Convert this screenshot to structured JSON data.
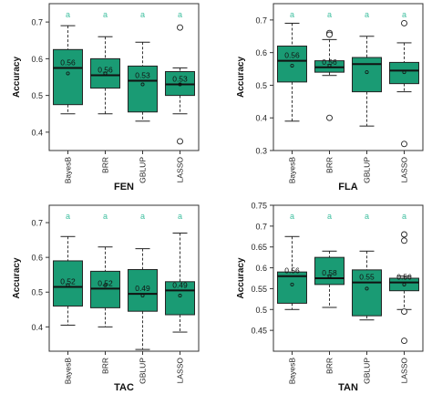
{
  "style": {
    "box_fill": "#1a9b74",
    "box_stroke": "#222222",
    "letter_color": "#3fbfa0",
    "frame_color": "#333333"
  },
  "chart_data": [
    {
      "type": "box",
      "title": "FEN",
      "xlabel": "",
      "ylabel": "Accuracy",
      "ylim": [
        0.35,
        0.75
      ],
      "yticks": [
        "0.4",
        "0.5",
        "0.6",
        "0.7"
      ],
      "categories": [
        "BayesB",
        "BRR",
        "GBLUP",
        "LASSO"
      ],
      "boxes": [
        {
          "min": 0.45,
          "q1": 0.475,
          "median": 0.575,
          "q3": 0.625,
          "max": 0.69,
          "mean": 0.56,
          "mean_label": "0.56",
          "letter": "a",
          "outliers": []
        },
        {
          "min": 0.45,
          "q1": 0.52,
          "median": 0.555,
          "q3": 0.6,
          "max": 0.66,
          "mean": 0.56,
          "mean_label": "0.56",
          "letter": "a",
          "outliers": []
        },
        {
          "min": 0.43,
          "q1": 0.455,
          "median": 0.54,
          "q3": 0.58,
          "max": 0.645,
          "mean": 0.53,
          "mean_label": "0.53",
          "letter": "a",
          "outliers": []
        },
        {
          "min": 0.45,
          "q1": 0.5,
          "median": 0.53,
          "q3": 0.565,
          "max": 0.575,
          "mean": 0.53,
          "mean_label": "0.53",
          "letter": "a",
          "outliers": [
            0.685,
            0.375
          ]
        }
      ]
    },
    {
      "type": "box",
      "title": "FLA",
      "xlabel": "",
      "ylabel": "Accuracy",
      "ylim": [
        0.3,
        0.75
      ],
      "yticks": [
        "0.3",
        "0.4",
        "0.5",
        "0.6",
        "0.7"
      ],
      "categories": [
        "BayesB",
        "BRR",
        "GBLUP",
        "LASSO"
      ],
      "boxes": [
        {
          "min": 0.39,
          "q1": 0.51,
          "median": 0.575,
          "q3": 0.62,
          "max": 0.69,
          "mean": 0.56,
          "mean_label": "0.56",
          "letter": "a",
          "outliers": []
        },
        {
          "min": 0.53,
          "q1": 0.54,
          "median": 0.555,
          "q3": 0.575,
          "max": 0.64,
          "mean": 0.56,
          "mean_label": "0.56",
          "letter": "a",
          "outliers": [
            0.66,
            0.655,
            0.4
          ]
        },
        {
          "min": 0.375,
          "q1": 0.48,
          "median": 0.565,
          "q3": 0.585,
          "max": 0.65,
          "mean": 0.54,
          "mean_label": "",
          "letter": "a",
          "outliers": []
        },
        {
          "min": 0.48,
          "q1": 0.505,
          "median": 0.545,
          "q3": 0.57,
          "max": 0.63,
          "mean": 0.54,
          "mean_label": "",
          "letter": "a",
          "outliers": [
            0.69,
            0.32
          ]
        }
      ]
    },
    {
      "type": "box",
      "title": "TAC",
      "xlabel": "",
      "ylabel": "Accuracy",
      "ylim": [
        0.33,
        0.75
      ],
      "yticks": [
        "0.4",
        "0.5",
        "0.6",
        "0.7"
      ],
      "categories": [
        "BayesB",
        "BRR",
        "GBLUP",
        "LASSO"
      ],
      "boxes": [
        {
          "min": 0.405,
          "q1": 0.46,
          "median": 0.515,
          "q3": 0.59,
          "max": 0.66,
          "mean": 0.52,
          "mean_label": "0.52",
          "letter": "a",
          "outliers": []
        },
        {
          "min": 0.4,
          "q1": 0.455,
          "median": 0.51,
          "q3": 0.56,
          "max": 0.63,
          "mean": 0.52,
          "mean_label": "0.52",
          "letter": "a",
          "outliers": []
        },
        {
          "min": 0.335,
          "q1": 0.445,
          "median": 0.495,
          "q3": 0.565,
          "max": 0.625,
          "mean": 0.49,
          "mean_label": "0.49",
          "letter": "a",
          "outliers": []
        },
        {
          "min": 0.385,
          "q1": 0.435,
          "median": 0.505,
          "q3": 0.53,
          "max": 0.67,
          "mean": 0.49,
          "mean_label": "0.49",
          "letter": "a",
          "outliers": []
        }
      ]
    },
    {
      "type": "box",
      "title": "TAN",
      "xlabel": "",
      "ylabel": "Accuracy",
      "ylim": [
        0.4,
        0.75
      ],
      "yticks": [
        "0.45",
        "0.5",
        "0.55",
        "0.6",
        "0.65",
        "0.7",
        "0.75"
      ],
      "categories": [
        "BayesB",
        "BRR",
        "GBLUP",
        "LASSO"
      ],
      "boxes": [
        {
          "min": 0.5,
          "q1": 0.515,
          "median": 0.58,
          "q3": 0.59,
          "max": 0.675,
          "mean": 0.56,
          "mean_label": "0.56",
          "letter": "a",
          "outliers": []
        },
        {
          "min": 0.505,
          "q1": 0.56,
          "median": 0.575,
          "q3": 0.625,
          "max": 0.64,
          "mean": 0.58,
          "mean_label": "0.58",
          "letter": "a",
          "outliers": []
        },
        {
          "min": 0.475,
          "q1": 0.485,
          "median": 0.565,
          "q3": 0.595,
          "max": 0.64,
          "mean": 0.55,
          "mean_label": "0.55",
          "letter": "a",
          "outliers": []
        },
        {
          "min": 0.5,
          "q1": 0.545,
          "median": 0.565,
          "q3": 0.575,
          "max": 0.58,
          "mean": 0.56,
          "mean_label": "0.56",
          "letter": "a",
          "outliers": [
            0.68,
            0.665,
            0.495,
            0.425
          ]
        }
      ]
    }
  ]
}
